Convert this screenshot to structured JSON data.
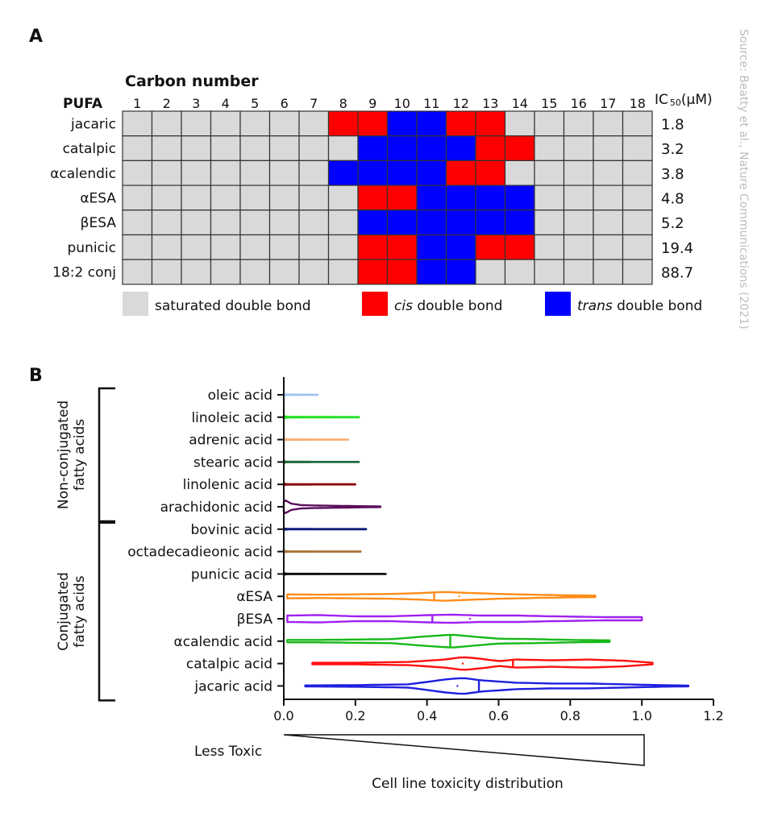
{
  "source_note": "Source: Beatty et al., Nature Communications (2021)",
  "colors": {
    "saturated": "#d9d9d9",
    "cis": "#ff0000",
    "trans": "#0000ff",
    "grid": "#333333"
  },
  "chart_data": [
    {
      "type": "heatmap",
      "panel_label": "A",
      "x_title": "Carbon number",
      "row_header": "PUFA",
      "ic50_header_main": "IC",
      "ic50_header_sub": "50",
      "ic50_header_unit": "(μM)",
      "columns": [
        "1",
        "2",
        "3",
        "4",
        "5",
        "6",
        "7",
        "8",
        "9",
        "10",
        "11",
        "12",
        "13",
        "14",
        "15",
        "16",
        "17",
        "18"
      ],
      "rows": [
        {
          "name": "jacaric",
          "ic50": "1.8",
          "cells": "SSSSSSSCCTTCCSSSSS"
        },
        {
          "name": "catalpic",
          "ic50": "3.2",
          "cells": "SSSSSSSSTTTTCCSSSS"
        },
        {
          "name": "αcalendic",
          "ic50": "3.8",
          "cells": "SSSSSSSTTTTCCSSSSS"
        },
        {
          "name": "αESA",
          "ic50": "4.8",
          "cells": "SSSSSSSSCCTTTTSSSS"
        },
        {
          "name": "βESA",
          "ic50": "5.2",
          "cells": "SSSSSSSSTTTTTTSSSS"
        },
        {
          "name": "punicic",
          "ic50": "19.4",
          "cells": "SSSSSSSSCCTTCCSSSS"
        },
        {
          "name": "18:2 conj",
          "ic50": "88.7",
          "cells": "SSSSSSSSCCTTSSSSSS"
        }
      ],
      "legend": [
        {
          "key": "S",
          "pre": "",
          "italic": "",
          "post": "saturated double bond"
        },
        {
          "key": "C",
          "pre": "",
          "italic": "cis",
          "post": " double bond"
        },
        {
          "key": "T",
          "pre": "",
          "italic": "trans",
          "post": " double bond"
        }
      ]
    },
    {
      "type": "violin",
      "panel_label": "B",
      "xlabel": "Cell line toxicity distribution",
      "wedge_label": "Less Toxic",
      "xlim": [
        0,
        1.2
      ],
      "xticks": [
        "0.0",
        "0.2",
        "0.4",
        "0.6",
        "0.8",
        "1.0",
        "1.2"
      ],
      "groups": [
        {
          "label": "Non-conjugated fatty acids",
          "line1": "Non-conjugated",
          "line2": "fatty acids",
          "first": 0,
          "last": 5
        },
        {
          "label": "Conjugated fatty acids",
          "line1": "Conjugated",
          "line2": "fatty acids",
          "first": 6,
          "last": 13
        }
      ],
      "series": [
        {
          "name": "oleic acid",
          "color": "#9ec4f2",
          "min": 0.0,
          "max": 0.095,
          "median": null,
          "mean": null,
          "profile": [
            [
              0,
              0.8
            ],
            [
              0.01,
              0.3
            ],
            [
              0.095,
              0.15
            ]
          ]
        },
        {
          "name": "linoleic acid",
          "color": "#1fe01f",
          "min": 0.0,
          "max": 0.21,
          "median": null,
          "mean": null,
          "profile": [
            [
              0,
              1.5
            ],
            [
              0.01,
              0.4
            ],
            [
              0.21,
              0.15
            ]
          ]
        },
        {
          "name": "adrenic acid",
          "color": "#f5b07a",
          "min": 0.0,
          "max": 0.18,
          "median": null,
          "mean": null,
          "profile": [
            [
              0,
              1
            ],
            [
              0.01,
              0.3
            ],
            [
              0.18,
              0.15
            ]
          ]
        },
        {
          "name": "stearic acid",
          "color": "#1e6b3c",
          "min": 0.0,
          "max": 0.21,
          "median": null,
          "mean": null,
          "profile": [
            [
              0,
              1
            ],
            [
              0.01,
              0.3
            ],
            [
              0.21,
              0.15
            ]
          ]
        },
        {
          "name": "linolenic acid",
          "color": "#8b0a0a",
          "min": 0.0,
          "max": 0.2,
          "median": null,
          "mean": null,
          "profile": [
            [
              0,
              1
            ],
            [
              0.01,
              0.3
            ],
            [
              0.2,
              0.15
            ]
          ]
        },
        {
          "name": "arachidonic acid",
          "color": "#5c0f5c",
          "min": 0.0,
          "max": 0.27,
          "median": null,
          "mean": null,
          "profile": [
            [
              0,
              6
            ],
            [
              0.005,
              8
            ],
            [
              0.02,
              4
            ],
            [
              0.05,
              2
            ],
            [
              0.1,
              1.5
            ],
            [
              0.27,
              0.4
            ]
          ]
        },
        {
          "name": "bovinic acid",
          "color": "#0d1a7a",
          "min": 0.0,
          "max": 0.23,
          "median": null,
          "mean": null,
          "profile": [
            [
              0,
              1
            ],
            [
              0.01,
              0.3
            ],
            [
              0.23,
              0.15
            ]
          ]
        },
        {
          "name": "octadecadieonic acid",
          "color": "#a8743a",
          "min": 0.0,
          "max": 0.215,
          "median": null,
          "mean": null,
          "profile": [
            [
              0,
              1
            ],
            [
              0.01,
              0.3
            ],
            [
              0.215,
              0.15
            ]
          ]
        },
        {
          "name": "punicic acid",
          "color": "#111111",
          "min": 0.0,
          "max": 0.285,
          "median": null,
          "mean": null,
          "profile": [
            [
              0,
              1
            ],
            [
              0.01,
              0.3
            ],
            [
              0.285,
              0.15
            ]
          ]
        },
        {
          "name": "αESA",
          "color": "#ff8c1a",
          "min": 0.01,
          "max": 0.87,
          "median": 0.42,
          "mean": 0.49,
          "profile": [
            [
              0.01,
              2.5
            ],
            [
              0.1,
              2
            ],
            [
              0.2,
              2.5
            ],
            [
              0.3,
              3
            ],
            [
              0.38,
              4
            ],
            [
              0.45,
              5.5
            ],
            [
              0.5,
              4.5
            ],
            [
              0.6,
              3
            ],
            [
              0.7,
              2
            ],
            [
              0.8,
              1.2
            ],
            [
              0.87,
              1
            ]
          ]
        },
        {
          "name": "βESA",
          "color": "#a020f0",
          "min": 0.01,
          "max": 1.0,
          "median": 0.415,
          "mean": 0.52,
          "profile": [
            [
              0.01,
              4
            ],
            [
              0.1,
              4.5
            ],
            [
              0.2,
              3
            ],
            [
              0.3,
              3
            ],
            [
              0.4,
              4.5
            ],
            [
              0.47,
              5
            ],
            [
              0.55,
              4
            ],
            [
              0.65,
              4
            ],
            [
              0.75,
              3
            ],
            [
              0.9,
              2
            ],
            [
              1.0,
              2
            ]
          ]
        },
        {
          "name": "αcalendic acid",
          "color": "#18b818",
          "min": 0.01,
          "max": 0.91,
          "median": 0.465,
          "mean": 0.465,
          "profile": [
            [
              0.01,
              1.5
            ],
            [
              0.1,
              1.5
            ],
            [
              0.2,
              2
            ],
            [
              0.3,
              2.5
            ],
            [
              0.4,
              6
            ],
            [
              0.47,
              8
            ],
            [
              0.52,
              6
            ],
            [
              0.6,
              3
            ],
            [
              0.7,
              2.5
            ],
            [
              0.8,
              1.5
            ],
            [
              0.91,
              1
            ]
          ]
        },
        {
          "name": "catalpic acid",
          "color": "#ff1010",
          "min": 0.08,
          "max": 1.03,
          "median": 0.64,
          "mean": 0.5,
          "profile": [
            [
              0.08,
              1
            ],
            [
              0.2,
              1
            ],
            [
              0.35,
              2
            ],
            [
              0.45,
              5
            ],
            [
              0.5,
              8
            ],
            [
              0.55,
              6
            ],
            [
              0.6,
              3
            ],
            [
              0.65,
              5
            ],
            [
              0.75,
              4
            ],
            [
              0.85,
              5
            ],
            [
              0.95,
              3.5
            ],
            [
              1.03,
              1
            ]
          ]
        },
        {
          "name": "jacaric acid",
          "color": "#1f1fe0",
          "min": 0.06,
          "max": 1.13,
          "median": 0.545,
          "mean": 0.485,
          "profile": [
            [
              0.06,
              0.6
            ],
            [
              0.2,
              1
            ],
            [
              0.35,
              2
            ],
            [
              0.45,
              8
            ],
            [
              0.5,
              10
            ],
            [
              0.55,
              7
            ],
            [
              0.65,
              4
            ],
            [
              0.75,
              3
            ],
            [
              0.85,
              3
            ],
            [
              0.95,
              2
            ],
            [
              1.05,
              1
            ],
            [
              1.13,
              0.5
            ]
          ]
        }
      ]
    }
  ]
}
